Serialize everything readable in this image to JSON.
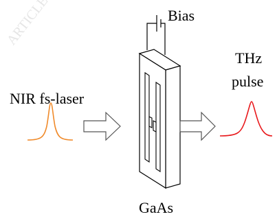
{
  "watermark": "ARTICLE",
  "labels": {
    "bias": "Bias",
    "input": "NIR fs-laser",
    "output_line1": "THz",
    "output_line2": "pulse",
    "material": "GaAs"
  },
  "colors": {
    "input_pulse": "#f08a2a",
    "output_pulse": "#e8191c",
    "outline": "#000000",
    "arrow": "#555555"
  },
  "icons": {
    "bias_source": "battery-symbol-icon",
    "arrow": "hollow-right-arrow-icon"
  }
}
